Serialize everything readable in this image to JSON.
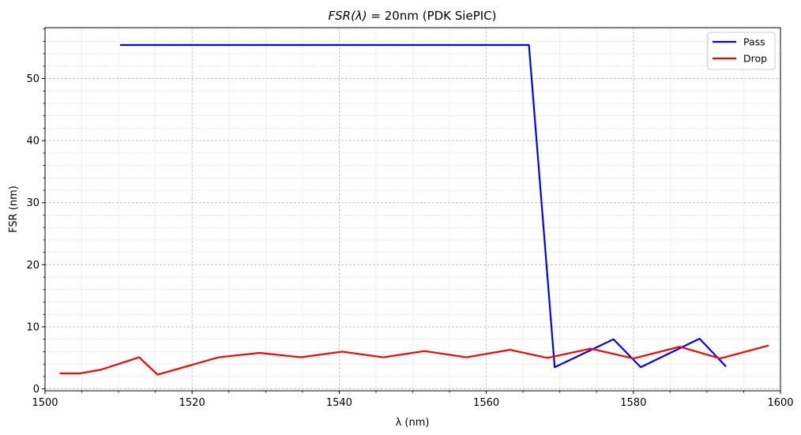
{
  "chart_data": {
    "type": "line",
    "title_prefix": "FSR(λ)",
    "title_suffix": " = 20nm (PDK SiePIC)",
    "xlabel": "λ (nm)",
    "ylabel": "FSR (nm)",
    "xlim": [
      1500,
      1600
    ],
    "ylim": [
      -0.3,
      58.2
    ],
    "x_ticks": [
      1500,
      1520,
      1540,
      1560,
      1580,
      1600
    ],
    "y_ticks": [
      0,
      10,
      20,
      30,
      40,
      50
    ],
    "grid": true,
    "legend_position": "top-right",
    "series": [
      {
        "name": "Pass",
        "color": "#0000ff",
        "x": [
          1510.2,
          1565.8,
          1569.3,
          1577.3,
          1581.0,
          1589.0,
          1592.6
        ],
        "y": [
          55.4,
          55.4,
          3.5,
          8.0,
          3.5,
          8.1,
          3.6
        ]
      },
      {
        "name": "Drop",
        "color": "#ff0000",
        "x": [
          1502.0,
          1504.8,
          1507.6,
          1512.8,
          1515.3,
          1523.6,
          1529.2,
          1534.8,
          1540.4,
          1546.0,
          1551.6,
          1557.3,
          1563.2,
          1568.3,
          1574.2,
          1580.0,
          1586.3,
          1591.8,
          1598.4
        ],
        "y": [
          2.5,
          2.5,
          3.1,
          5.1,
          2.3,
          5.1,
          5.8,
          5.1,
          6.0,
          5.1,
          6.1,
          5.1,
          6.3,
          5.0,
          6.5,
          4.9,
          6.8,
          4.9,
          7.0
        ]
      }
    ]
  }
}
